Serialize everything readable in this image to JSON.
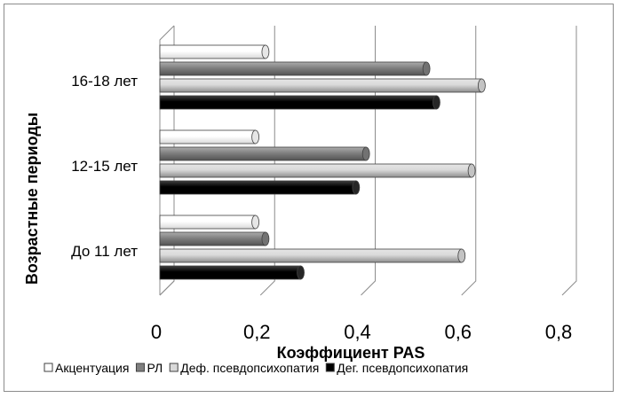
{
  "chart_data": {
    "type": "bar",
    "orientation": "horizontal",
    "style": "3d-cylinder",
    "categories": [
      "До 11 лет",
      "12-15 лет",
      "16-18 лет"
    ],
    "series": [
      {
        "name": "Акцентуация",
        "values": [
          0.19,
          0.19,
          0.21
        ],
        "color": "#ffffff"
      },
      {
        "name": "РЛ",
        "values": [
          0.21,
          0.41,
          0.53
        ],
        "color": "#7f7f7f"
      },
      {
        "name": "Деф. псевдопсихопатия",
        "values": [
          0.6,
          0.62,
          0.64
        ],
        "color": "#d9d9d9"
      },
      {
        "name": "Дег. псевдопсихопатия",
        "values": [
          0.28,
          0.39,
          0.55
        ],
        "color": "#000000"
      }
    ],
    "x_ticks": [
      "0",
      "0,2",
      "0,4",
      "0,6",
      "0,8"
    ],
    "xlim": [
      0,
      0.8
    ],
    "xlabel": "Коэффициент PAS",
    "ylabel": "Возрастные периоды",
    "grid": true,
    "legend": "bottom"
  }
}
